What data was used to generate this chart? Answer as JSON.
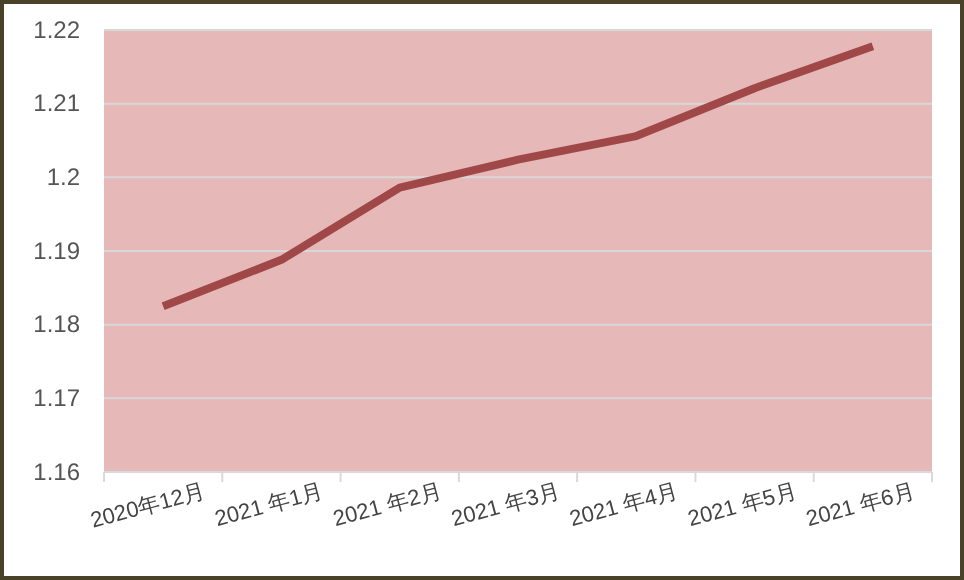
{
  "chart_data": {
    "type": "line",
    "categories": [
      "2020年12月",
      "2021 年1月",
      "2021 年2月",
      "2021 年3月",
      "2021 年4月",
      "2021 年5月",
      "2021 年6月"
    ],
    "series": [
      {
        "color": "#a04848",
        "values": [
          1.1825,
          1.1888,
          1.1986,
          1.2024,
          1.2056,
          1.2121,
          1.2178
        ]
      }
    ],
    "ylim": [
      1.16,
      1.22
    ],
    "yticks": [
      1.16,
      1.17,
      1.18,
      1.19,
      1.2,
      1.21,
      1.22
    ],
    "grid": "y",
    "marker": "none",
    "line_style": "solid"
  }
}
